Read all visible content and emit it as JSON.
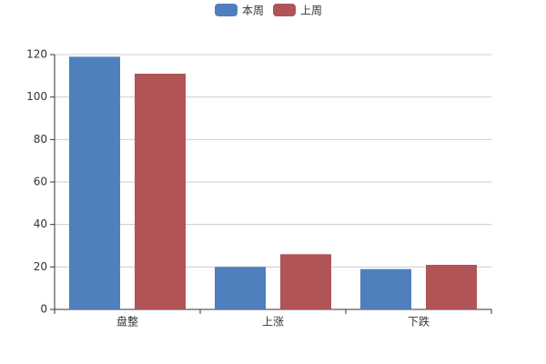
{
  "chart_data": {
    "type": "bar",
    "categories": [
      "盘整",
      "上涨",
      "下跌"
    ],
    "series": [
      {
        "name": "本周",
        "color": "#4f7fbc",
        "values": [
          119,
          20,
          19
        ]
      },
      {
        "name": "上周",
        "color": "#b05457",
        "values": [
          111,
          26,
          21
        ]
      }
    ],
    "ylim": [
      0,
      120
    ],
    "yticks": [
      0,
      20,
      40,
      60,
      80,
      100,
      120
    ],
    "grid": true,
    "legend": "top"
  }
}
